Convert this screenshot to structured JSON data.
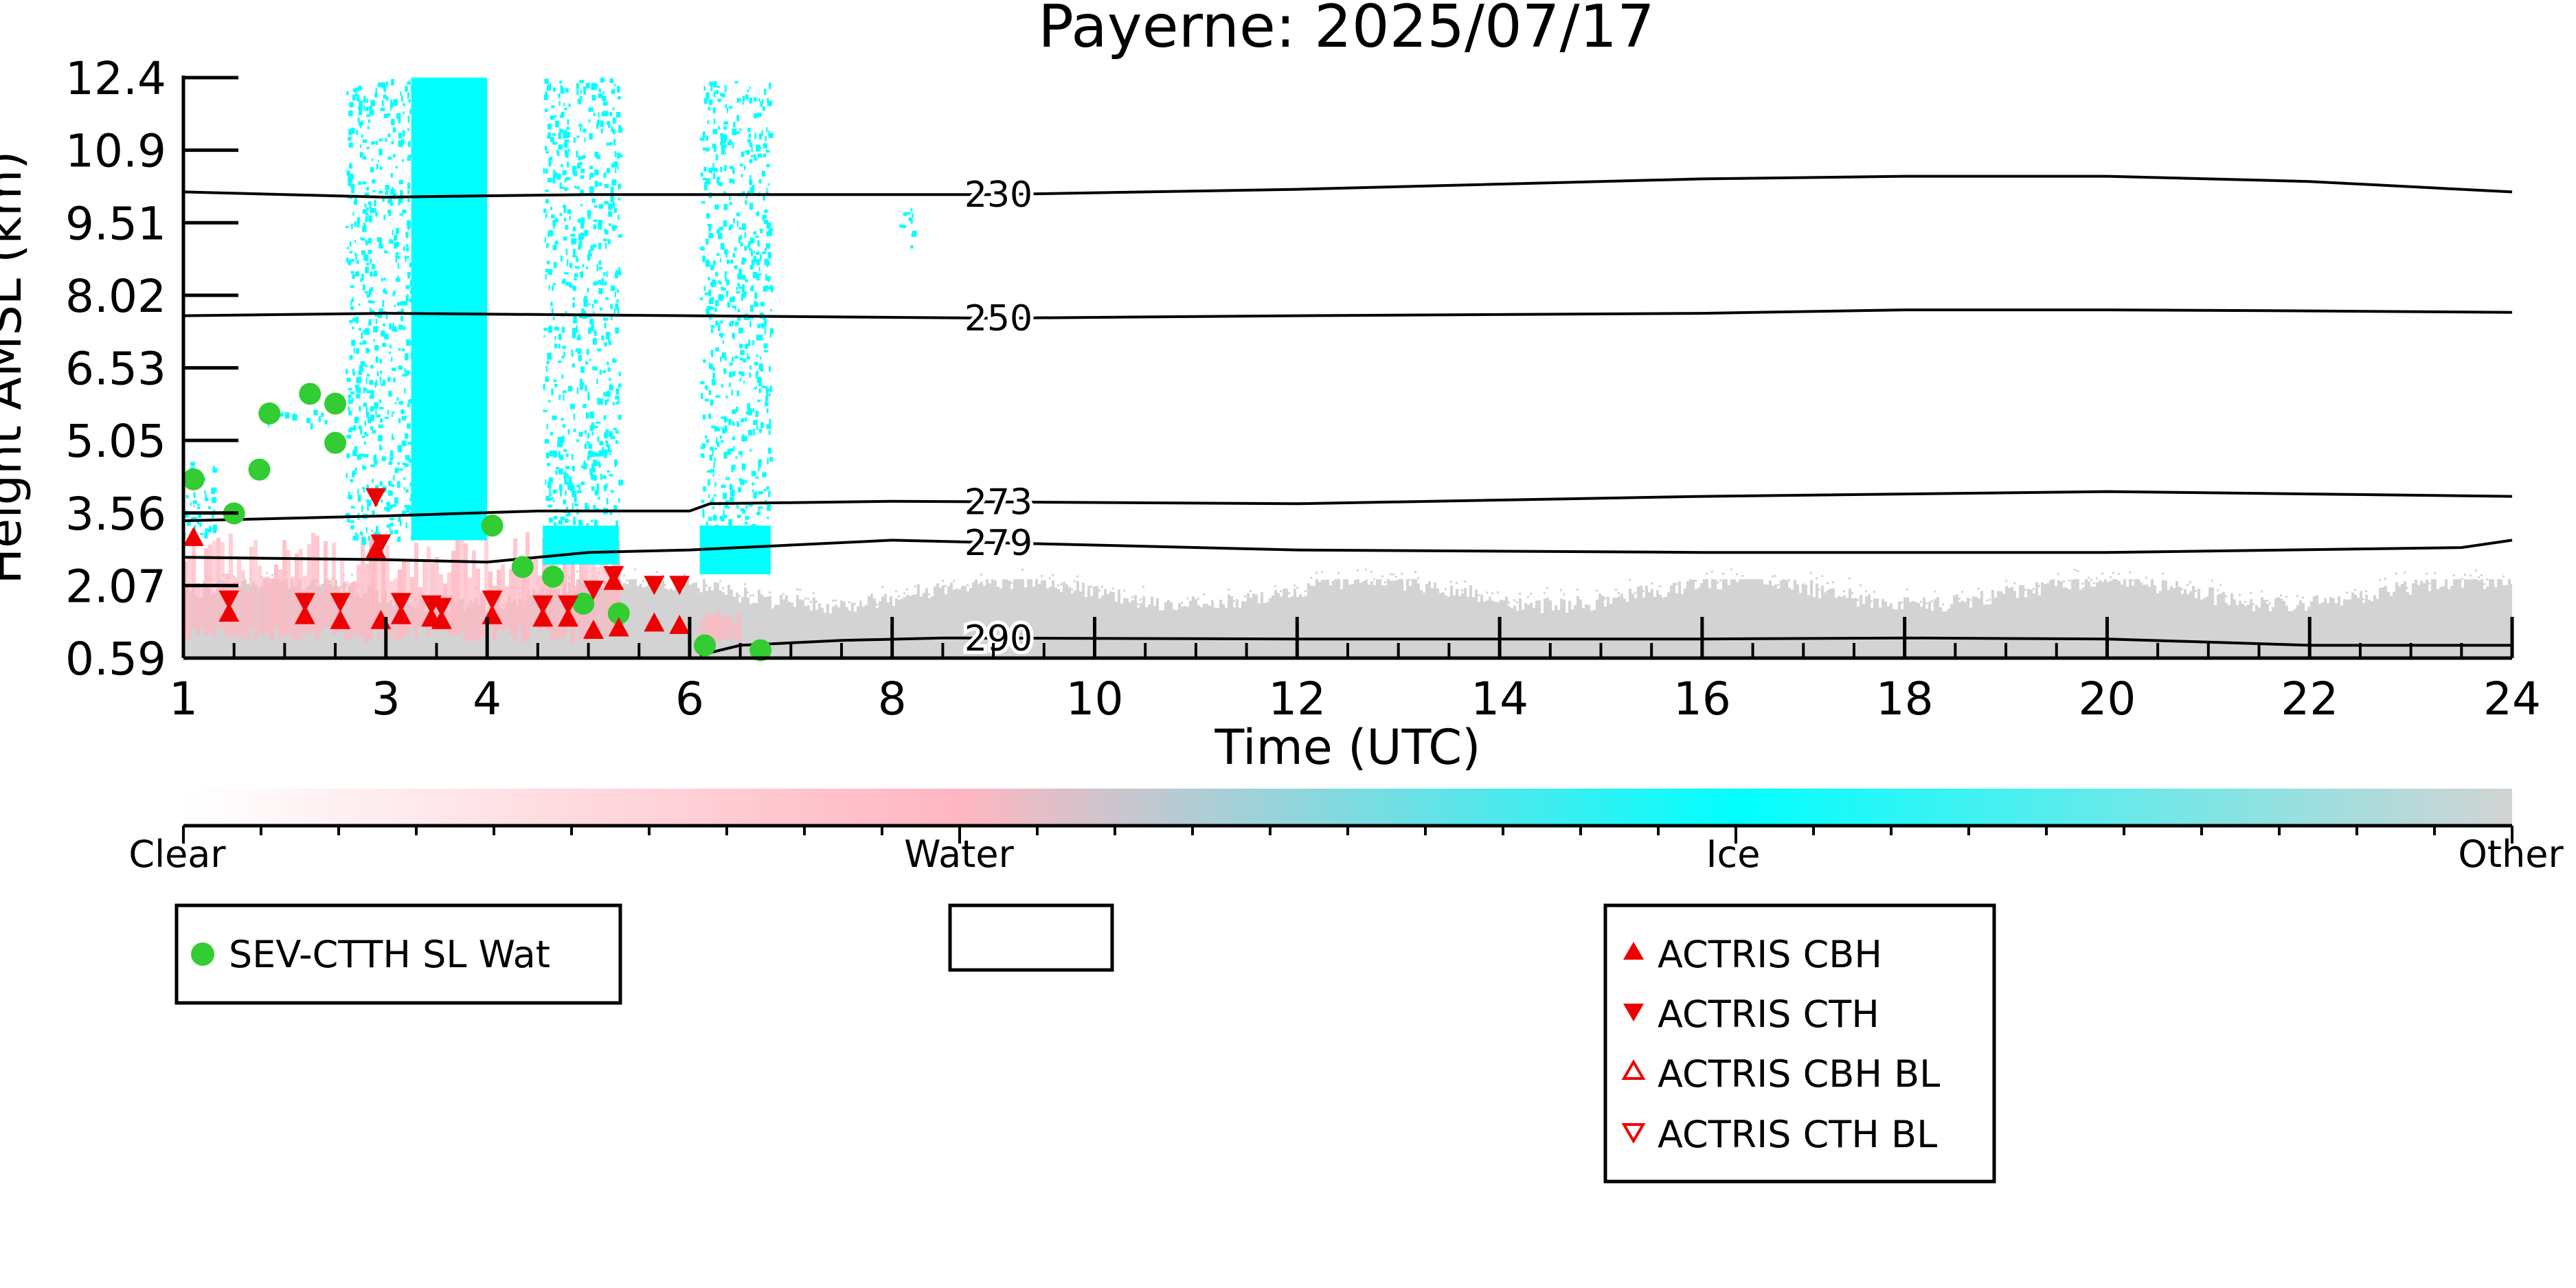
{
  "chart_data": {
    "type": "scatter",
    "title": "Payerne: 2025/07/17",
    "xlabel": "Time (UTC)",
    "ylabel": "Height AMSL (km)",
    "xlim": [
      1,
      24
    ],
    "ylim": [
      0.59,
      12.4
    ],
    "x_ticks": [
      1,
      3,
      4,
      6,
      8,
      10,
      12,
      14,
      16,
      18,
      20,
      22,
      24
    ],
    "x_tick_labels": [
      "1",
      "3",
      "4",
      "6",
      "8",
      "10",
      "12",
      "14",
      "16",
      "18",
      "20",
      "22",
      "24"
    ],
    "y_ticks": [
      0.59,
      2.07,
      3.56,
      5.05,
      6.53,
      8.02,
      9.51,
      10.9,
      12.4
    ],
    "y_tick_labels": [
      "0.59",
      "2.07",
      "3.56",
      "5.05",
      "6.53",
      "8.02",
      "9.51",
      "10.9",
      "12.4"
    ],
    "colorbar": {
      "labels": [
        "Clear",
        "Water",
        "Ice",
        "Other"
      ],
      "colors": [
        "#ffffff",
        "#ffb6c1",
        "#00ffff",
        "#d3d3d3"
      ]
    },
    "temperature_contours": [
      {
        "label": "230",
        "label_x": 9.05,
        "points": [
          [
            1,
            10.1
          ],
          [
            3,
            10.0
          ],
          [
            5,
            10.05
          ],
          [
            9,
            10.05
          ],
          [
            12,
            10.15
          ],
          [
            16,
            10.35
          ],
          [
            18,
            10.4
          ],
          [
            20,
            10.4
          ],
          [
            22,
            10.3
          ],
          [
            24,
            10.1
          ]
        ]
      },
      {
        "label": "250",
        "label_x": 9.05,
        "points": [
          [
            1,
            7.6
          ],
          [
            3,
            7.65
          ],
          [
            6,
            7.6
          ],
          [
            9,
            7.55
          ],
          [
            12,
            7.6
          ],
          [
            16,
            7.65
          ],
          [
            18,
            7.72
          ],
          [
            20,
            7.72
          ],
          [
            22,
            7.7
          ],
          [
            24,
            7.67
          ]
        ]
      },
      {
        "label": "273",
        "label_x": 9.05,
        "points": [
          [
            1,
            3.4
          ],
          [
            3,
            3.5
          ],
          [
            4.5,
            3.6
          ],
          [
            6,
            3.6
          ],
          [
            6.2,
            3.75
          ],
          [
            8,
            3.8
          ],
          [
            12,
            3.75
          ],
          [
            16,
            3.9
          ],
          [
            20,
            4.0
          ],
          [
            22,
            3.95
          ],
          [
            24,
            3.9
          ]
        ]
      },
      {
        "label": "279",
        "label_x": 9.05,
        "points": [
          [
            1,
            2.65
          ],
          [
            3,
            2.6
          ],
          [
            4,
            2.55
          ],
          [
            5,
            2.75
          ],
          [
            6,
            2.8
          ],
          [
            8,
            3.0
          ],
          [
            12,
            2.8
          ],
          [
            16,
            2.75
          ],
          [
            20,
            2.75
          ],
          [
            23.5,
            2.85
          ],
          [
            24,
            3.0
          ]
        ]
      },
      {
        "label": "290",
        "label_x": 9.05,
        "points": [
          [
            6.1,
            0.65
          ],
          [
            6.5,
            0.85
          ],
          [
            7.5,
            0.95
          ],
          [
            8.5,
            1.0
          ],
          [
            12,
            0.98
          ],
          [
            16,
            0.98
          ],
          [
            18,
            1.0
          ],
          [
            20,
            0.98
          ],
          [
            22,
            0.85
          ],
          [
            24,
            0.85
          ]
        ]
      }
    ],
    "lidar_cloud_mask": [
      {
        "phase": "Ice",
        "x": [
          3.25,
          4.0
        ],
        "y": [
          3.0,
          12.4
        ],
        "style": "solid"
      },
      {
        "phase": "Ice",
        "x": [
          4.55,
          5.3
        ],
        "y": [
          2.5,
          3.3
        ],
        "style": "solid"
      },
      {
        "phase": "Ice",
        "x": [
          6.1,
          6.8
        ],
        "y": [
          2.3,
          3.3
        ],
        "style": "solid"
      },
      {
        "phase": "Ice",
        "x": [
          2.6,
          3.25
        ],
        "y": [
          3.0,
          12.4
        ],
        "style": "sparse"
      },
      {
        "phase": "Ice",
        "x": [
          4.55,
          5.3
        ],
        "y": [
          3.3,
          12.4
        ],
        "style": "sparse"
      },
      {
        "phase": "Ice",
        "x": [
          6.1,
          6.8
        ],
        "y": [
          3.3,
          12.4
        ],
        "style": "sparse"
      },
      {
        "phase": "Ice",
        "x": [
          8.05,
          8.2
        ],
        "y": [
          9.0,
          9.8
        ],
        "style": "sparse"
      },
      {
        "phase": "Ice",
        "x": [
          1.0,
          1.3
        ],
        "y": [
          3.0,
          4.7
        ],
        "style": "sparse"
      },
      {
        "phase": "Ice",
        "x": [
          1.8,
          2.4
        ],
        "y": [
          5.4,
          5.7
        ],
        "style": "sparse"
      },
      {
        "phase": "Water",
        "x": [
          1.0,
          5.3
        ],
        "y": [
          0.9,
          3.2
        ],
        "style": "patchy"
      },
      {
        "phase": "Water",
        "x": [
          6.1,
          6.5
        ],
        "y": [
          0.9,
          1.6
        ],
        "style": "patchy"
      },
      {
        "phase": "Other",
        "x": [
          1.0,
          24.0
        ],
        "y": [
          0.59,
          2.2
        ],
        "style": "noise"
      }
    ],
    "series": [
      {
        "name": "SEV-CTTH SL Wat",
        "marker": "circle",
        "color": "#33cc33",
        "x": [
          1.1,
          1.5,
          1.75,
          1.85,
          2.25,
          2.5,
          2.5,
          4.05,
          4.35,
          4.65,
          4.95,
          5.3,
          6.15,
          6.7
        ],
        "y": [
          4.25,
          3.55,
          4.45,
          5.6,
          6.0,
          5.8,
          5.0,
          3.3,
          2.45,
          2.25,
          1.7,
          1.5,
          0.85,
          0.75
        ]
      },
      {
        "name": "ACTRIS CBH",
        "marker": "triangle-up",
        "color": "#ee0000",
        "x": [
          1.1,
          1.45,
          2.2,
          2.55,
          2.9,
          2.95,
          3.15,
          3.45,
          3.55,
          4.05,
          4.55,
          4.8,
          5.05,
          5.25,
          5.3,
          5.65,
          5.9
        ],
        "y": [
          3.05,
          1.5,
          1.45,
          1.35,
          2.8,
          1.35,
          1.45,
          1.4,
          1.35,
          1.45,
          1.4,
          1.4,
          1.15,
          2.15,
          1.2,
          1.3,
          1.25
        ]
      },
      {
        "name": "ACTRIS CTH",
        "marker": "triangle-down",
        "color": "#ee0000",
        "x": [
          1.45,
          2.2,
          2.55,
          2.9,
          2.95,
          3.15,
          3.45,
          3.55,
          4.05,
          4.55,
          4.8,
          5.05,
          5.25,
          5.65,
          5.9
        ],
        "y": [
          1.8,
          1.75,
          1.75,
          3.9,
          2.95,
          1.75,
          1.7,
          1.65,
          1.8,
          1.7,
          1.7,
          2.0,
          2.3,
          2.1,
          2.1
        ]
      },
      {
        "name": "ACTRIS CBH BL",
        "marker": "triangle-up-open",
        "color": "#ee0000",
        "x": [],
        "y": []
      },
      {
        "name": "ACTRIS CTH BL",
        "marker": "triangle-down-open",
        "color": "#ee0000",
        "x": [],
        "y": []
      }
    ],
    "legends": [
      {
        "entries": [
          "SEV-CTTH SL Wat"
        ]
      },
      {
        "entries": []
      },
      {
        "entries": [
          "ACTRIS CBH",
          "ACTRIS CTH",
          "ACTRIS CBH BL",
          "ACTRIS CTH BL"
        ]
      }
    ]
  }
}
